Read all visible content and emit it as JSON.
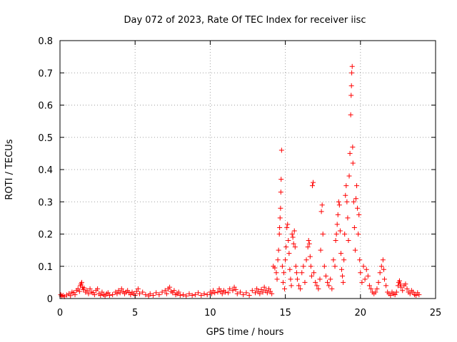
{
  "chart_data": {
    "type": "scatter",
    "title": "Day 072 of 2023, Rate Of TEC Index for receiver iisc",
    "xlabel": "GPS time / hours",
    "ylabel": "ROTI / TECUs",
    "xlim": [
      0,
      25
    ],
    "ylim": [
      0,
      0.8
    ],
    "xticks": [
      "0",
      "5",
      "10",
      "15",
      "20",
      "25"
    ],
    "yticks": [
      "0",
      "0.1",
      "0.2",
      "0.3",
      "0.4",
      "0.5",
      "0.6",
      "0.7",
      "0.8"
    ],
    "grid": true,
    "marker": "plus",
    "color": "#ff0000",
    "series": [
      {
        "points": [
          [
            0.05,
            0.012
          ],
          [
            0.1,
            0.008
          ],
          [
            0.2,
            0.01
          ],
          [
            0.3,
            0.006
          ],
          [
            0.45,
            0.011
          ],
          [
            0.6,
            0.015
          ],
          [
            0.7,
            0.009
          ],
          [
            0.8,
            0.02
          ],
          [
            0.9,
            0.018
          ],
          [
            1.0,
            0.012
          ],
          [
            1.1,
            0.025
          ],
          [
            1.2,
            0.03
          ],
          [
            1.3,
            0.022
          ],
          [
            1.35,
            0.04
          ],
          [
            1.4,
            0.045
          ],
          [
            1.45,
            0.05
          ],
          [
            1.5,
            0.035
          ],
          [
            1.55,
            0.028
          ],
          [
            1.6,
            0.033
          ],
          [
            1.7,
            0.02
          ],
          [
            1.8,
            0.025
          ],
          [
            1.9,
            0.015
          ],
          [
            2.0,
            0.03
          ],
          [
            2.1,
            0.02
          ],
          [
            2.2,
            0.018
          ],
          [
            2.3,
            0.012
          ],
          [
            2.4,
            0.025
          ],
          [
            2.5,
            0.03
          ],
          [
            2.6,
            0.015
          ],
          [
            2.7,
            0.01
          ],
          [
            2.8,
            0.02
          ],
          [
            2.9,
            0.012
          ],
          [
            3.0,
            0.008
          ],
          [
            3.1,
            0.015
          ],
          [
            3.2,
            0.018
          ],
          [
            3.3,
            0.01
          ],
          [
            3.5,
            0.012
          ],
          [
            3.7,
            0.02
          ],
          [
            3.8,
            0.015
          ],
          [
            3.9,
            0.025
          ],
          [
            4.0,
            0.018
          ],
          [
            4.1,
            0.03
          ],
          [
            4.2,
            0.022
          ],
          [
            4.3,
            0.015
          ],
          [
            4.4,
            0.02
          ],
          [
            4.5,
            0.025
          ],
          [
            4.6,
            0.018
          ],
          [
            4.7,
            0.012
          ],
          [
            4.8,
            0.02
          ],
          [
            4.9,
            0.015
          ],
          [
            5.0,
            0.01
          ],
          [
            5.1,
            0.022
          ],
          [
            5.2,
            0.03
          ],
          [
            5.3,
            0.015
          ],
          [
            5.5,
            0.02
          ],
          [
            5.7,
            0.012
          ],
          [
            5.9,
            0.008
          ],
          [
            6.0,
            0.015
          ],
          [
            6.2,
            0.01
          ],
          [
            6.4,
            0.018
          ],
          [
            6.6,
            0.012
          ],
          [
            6.8,
            0.02
          ],
          [
            7.0,
            0.025
          ],
          [
            7.1,
            0.015
          ],
          [
            7.2,
            0.03
          ],
          [
            7.3,
            0.035
          ],
          [
            7.4,
            0.022
          ],
          [
            7.5,
            0.018
          ],
          [
            7.6,
            0.025
          ],
          [
            7.7,
            0.012
          ],
          [
            7.8,
            0.015
          ],
          [
            7.9,
            0.02
          ],
          [
            8.0,
            0.01
          ],
          [
            8.2,
            0.012
          ],
          [
            8.4,
            0.008
          ],
          [
            8.6,
            0.015
          ],
          [
            8.8,
            0.01
          ],
          [
            9.0,
            0.012
          ],
          [
            9.2,
            0.018
          ],
          [
            9.4,
            0.01
          ],
          [
            9.6,
            0.015
          ],
          [
            9.8,
            0.012
          ],
          [
            10.0,
            0.02
          ],
          [
            10.1,
            0.015
          ],
          [
            10.2,
            0.025
          ],
          [
            10.3,
            0.018
          ],
          [
            10.5,
            0.02
          ],
          [
            10.6,
            0.03
          ],
          [
            10.7,
            0.022
          ],
          [
            10.8,
            0.015
          ],
          [
            10.9,
            0.025
          ],
          [
            11.0,
            0.02
          ],
          [
            11.2,
            0.018
          ],
          [
            11.3,
            0.03
          ],
          [
            11.5,
            0.025
          ],
          [
            11.6,
            0.035
          ],
          [
            11.7,
            0.028
          ],
          [
            11.8,
            0.015
          ],
          [
            12.0,
            0.02
          ],
          [
            12.2,
            0.012
          ],
          [
            12.4,
            0.018
          ],
          [
            12.6,
            0.01
          ],
          [
            12.8,
            0.025
          ],
          [
            13.0,
            0.018
          ],
          [
            13.1,
            0.03
          ],
          [
            13.2,
            0.022
          ],
          [
            13.3,
            0.015
          ],
          [
            13.4,
            0.028
          ],
          [
            13.5,
            0.02
          ],
          [
            13.6,
            0.035
          ],
          [
            13.7,
            0.025
          ],
          [
            13.8,
            0.018
          ],
          [
            13.9,
            0.03
          ],
          [
            14.0,
            0.022
          ],
          [
            14.1,
            0.015
          ],
          [
            14.2,
            0.1
          ],
          [
            14.3,
            0.095
          ],
          [
            14.4,
            0.08
          ],
          [
            14.45,
            0.06
          ],
          [
            14.5,
            0.12
          ],
          [
            14.55,
            0.15
          ],
          [
            14.6,
            0.2
          ],
          [
            14.62,
            0.22
          ],
          [
            14.65,
            0.25
          ],
          [
            14.68,
            0.28
          ],
          [
            14.7,
            0.33
          ],
          [
            14.72,
            0.37
          ],
          [
            14.75,
            0.46
          ],
          [
            14.8,
            0.1
          ],
          [
            14.85,
            0.05
          ],
          [
            14.9,
            0.08
          ],
          [
            14.95,
            0.03
          ],
          [
            15.0,
            0.12
          ],
          [
            15.05,
            0.16
          ],
          [
            15.1,
            0.22
          ],
          [
            15.15,
            0.23
          ],
          [
            15.2,
            0.18
          ],
          [
            15.25,
            0.14
          ],
          [
            15.3,
            0.09
          ],
          [
            15.35,
            0.06
          ],
          [
            15.4,
            0.04
          ],
          [
            15.45,
            0.2
          ],
          [
            15.5,
            0.19
          ],
          [
            15.55,
            0.17
          ],
          [
            15.6,
            0.21
          ],
          [
            15.65,
            0.16
          ],
          [
            15.7,
            0.1
          ],
          [
            15.75,
            0.08
          ],
          [
            15.8,
            0.06
          ],
          [
            15.9,
            0.04
          ],
          [
            16.0,
            0.03
          ],
          [
            16.1,
            0.08
          ],
          [
            16.2,
            0.1
          ],
          [
            16.3,
            0.05
          ],
          [
            16.4,
            0.12
          ],
          [
            16.5,
            0.16
          ],
          [
            16.55,
            0.18
          ],
          [
            16.6,
            0.17
          ],
          [
            16.65,
            0.13
          ],
          [
            16.7,
            0.1
          ],
          [
            16.75,
            0.07
          ],
          [
            16.8,
            0.35
          ],
          [
            16.85,
            0.36
          ],
          [
            16.9,
            0.08
          ],
          [
            17.0,
            0.05
          ],
          [
            17.1,
            0.04
          ],
          [
            17.2,
            0.03
          ],
          [
            17.3,
            0.06
          ],
          [
            17.35,
            0.15
          ],
          [
            17.4,
            0.27
          ],
          [
            17.45,
            0.29
          ],
          [
            17.5,
            0.2
          ],
          [
            17.6,
            0.1
          ],
          [
            17.7,
            0.07
          ],
          [
            17.8,
            0.05
          ],
          [
            17.9,
            0.04
          ],
          [
            18.0,
            0.06
          ],
          [
            18.1,
            0.03
          ],
          [
            18.2,
            0.12
          ],
          [
            18.3,
            0.1
          ],
          [
            18.35,
            0.18
          ],
          [
            18.4,
            0.2
          ],
          [
            18.45,
            0.23
          ],
          [
            18.5,
            0.26
          ],
          [
            18.55,
            0.3
          ],
          [
            18.6,
            0.29
          ],
          [
            18.65,
            0.21
          ],
          [
            18.7,
            0.14
          ],
          [
            18.75,
            0.09
          ],
          [
            18.8,
            0.07
          ],
          [
            18.85,
            0.05
          ],
          [
            18.9,
            0.12
          ],
          [
            18.95,
            0.2
          ],
          [
            19.0,
            0.32
          ],
          [
            19.05,
            0.35
          ],
          [
            19.1,
            0.3
          ],
          [
            19.15,
            0.25
          ],
          [
            19.2,
            0.18
          ],
          [
            19.25,
            0.38
          ],
          [
            19.3,
            0.45
          ],
          [
            19.35,
            0.57
          ],
          [
            19.38,
            0.63
          ],
          [
            19.4,
            0.66
          ],
          [
            19.42,
            0.7
          ],
          [
            19.45,
            0.72
          ],
          [
            19.48,
            0.47
          ],
          [
            19.5,
            0.42
          ],
          [
            19.55,
            0.3
          ],
          [
            19.6,
            0.22
          ],
          [
            19.65,
            0.15
          ],
          [
            19.7,
            0.31
          ],
          [
            19.75,
            0.35
          ],
          [
            19.8,
            0.28
          ],
          [
            19.85,
            0.2
          ],
          [
            19.9,
            0.26
          ],
          [
            19.95,
            0.12
          ],
          [
            20.0,
            0.08
          ],
          [
            20.1,
            0.05
          ],
          [
            20.2,
            0.1
          ],
          [
            20.3,
            0.06
          ],
          [
            20.4,
            0.09
          ],
          [
            20.5,
            0.07
          ],
          [
            20.6,
            0.04
          ],
          [
            20.7,
            0.03
          ],
          [
            20.8,
            0.02
          ],
          [
            20.9,
            0.015
          ],
          [
            21.0,
            0.02
          ],
          [
            21.1,
            0.03
          ],
          [
            21.2,
            0.05
          ],
          [
            21.3,
            0.08
          ],
          [
            21.4,
            0.1
          ],
          [
            21.5,
            0.12
          ],
          [
            21.55,
            0.09
          ],
          [
            21.6,
            0.06
          ],
          [
            21.7,
            0.04
          ],
          [
            21.8,
            0.02
          ],
          [
            21.9,
            0.015
          ],
          [
            22.0,
            0.01
          ],
          [
            22.1,
            0.02
          ],
          [
            22.2,
            0.015
          ],
          [
            22.3,
            0.012
          ],
          [
            22.4,
            0.02
          ],
          [
            22.5,
            0.04
          ],
          [
            22.55,
            0.05
          ],
          [
            22.6,
            0.055
          ],
          [
            22.65,
            0.045
          ],
          [
            22.7,
            0.035
          ],
          [
            22.8,
            0.025
          ],
          [
            22.9,
            0.04
          ],
          [
            23.0,
            0.045
          ],
          [
            23.1,
            0.03
          ],
          [
            23.2,
            0.02
          ],
          [
            23.3,
            0.015
          ],
          [
            23.4,
            0.025
          ],
          [
            23.5,
            0.02
          ],
          [
            23.6,
            0.012
          ],
          [
            23.7,
            0.01
          ],
          [
            23.8,
            0.018
          ],
          [
            23.9,
            0.012
          ]
        ]
      }
    ]
  }
}
